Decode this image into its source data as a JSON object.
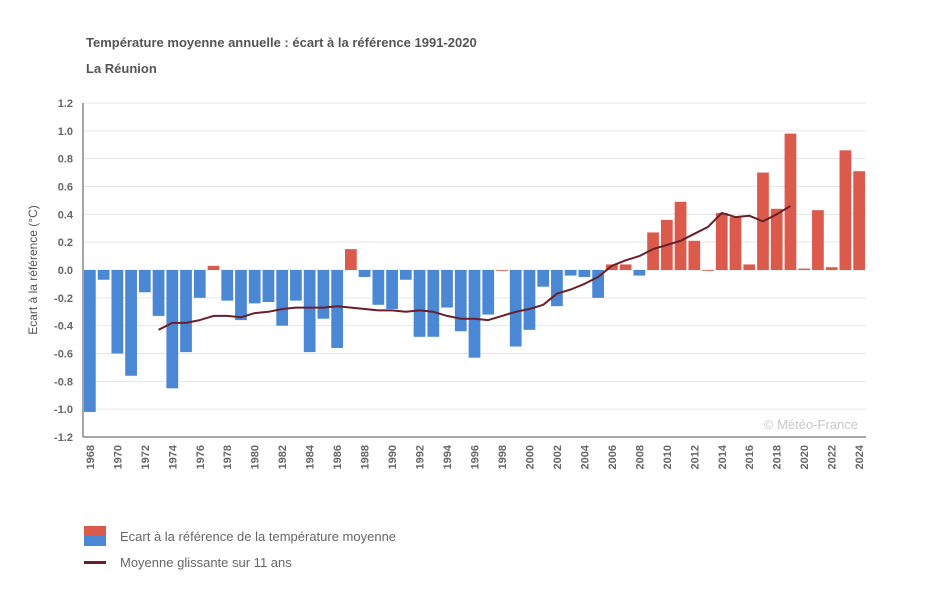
{
  "header": {
    "title": "Température moyenne annuelle : écart à la référence 1991-2020",
    "subtitle": "La Réunion"
  },
  "watermark": "© Météo-France",
  "legend": {
    "bars_label": "Ecart à la référence de la température moyenne",
    "line_label": "Moyenne glissante sur 11 ans"
  },
  "colors": {
    "positive": "#dc5a4c",
    "negative": "#4a88d6",
    "line": "#6b1f2a",
    "grid": "#e6e6e6",
    "axis": "#888888"
  },
  "chart_data": {
    "type": "bar",
    "title": "Température moyenne annuelle : écart à la référence 1991-2020",
    "subtitle": "La Réunion",
    "xlabel": "",
    "ylabel": "Ecart à la référence (°C)",
    "ylim": [
      -1.2,
      1.2
    ],
    "yticks": [
      1.2,
      1.0,
      0.8,
      0.6,
      0.4,
      0.2,
      0.0,
      -0.2,
      -0.4,
      -0.6,
      -0.8,
      -1.0,
      -1.2
    ],
    "ytick_labels": [
      "1.2",
      "1.0",
      "0.8",
      "0.6",
      "0.4",
      "0.2",
      "0.0",
      "-0.2",
      "-0.4",
      "-0.6",
      "-0.8",
      "-1.0",
      "-1.2"
    ],
    "grid": true,
    "legend_position": "bottom-left",
    "x": [
      1968,
      1969,
      1970,
      1971,
      1972,
      1973,
      1974,
      1975,
      1976,
      1977,
      1978,
      1979,
      1980,
      1981,
      1982,
      1983,
      1984,
      1985,
      1986,
      1987,
      1988,
      1989,
      1990,
      1991,
      1992,
      1993,
      1994,
      1995,
      1996,
      1997,
      1998,
      1999,
      2000,
      2001,
      2002,
      2003,
      2004,
      2005,
      2006,
      2007,
      2008,
      2009,
      2010,
      2011,
      2012,
      2013,
      2014,
      2015,
      2016,
      2017,
      2018,
      2019,
      2020,
      2021,
      2022,
      2023,
      2024
    ],
    "xtick_labels": [
      "1968",
      "1970",
      "1972",
      "1974",
      "1976",
      "1978",
      "1980",
      "1982",
      "1984",
      "1986",
      "1988",
      "1990",
      "1992",
      "1994",
      "1996",
      "1998",
      "2000",
      "2002",
      "2004",
      "2006",
      "2008",
      "2010",
      "2012",
      "2014",
      "2016",
      "2018",
      "2020",
      "2022",
      "2024"
    ],
    "series": [
      {
        "name": "Ecart à la référence de la température moyenne",
        "type": "bar",
        "values": [
          -1.02,
          -0.07,
          -0.6,
          -0.76,
          -0.16,
          -0.33,
          -0.85,
          -0.59,
          -0.2,
          0.03,
          -0.22,
          -0.36,
          -0.24,
          -0.23,
          -0.4,
          -0.22,
          -0.59,
          -0.35,
          -0.56,
          0.15,
          -0.05,
          -0.25,
          -0.28,
          -0.07,
          -0.48,
          -0.48,
          -0.27,
          -0.44,
          -0.63,
          -0.32,
          0.0,
          -0.55,
          -0.43,
          -0.12,
          -0.26,
          -0.04,
          -0.05,
          -0.2,
          0.04,
          0.04,
          -0.04,
          0.27,
          0.36,
          0.49,
          0.21,
          0.0,
          0.41,
          0.38,
          0.04,
          0.7,
          0.44,
          0.98,
          0.01,
          0.43,
          0.02,
          0.86,
          0.71
        ]
      },
      {
        "name": "Moyenne glissante sur 11 ans",
        "type": "line",
        "x": [
          1973,
          1974,
          1975,
          1976,
          1977,
          1978,
          1979,
          1980,
          1981,
          1982,
          1983,
          1984,
          1985,
          1986,
          1987,
          1988,
          1989,
          1990,
          1991,
          1992,
          1993,
          1994,
          1995,
          1996,
          1997,
          1998,
          1999,
          2000,
          2001,
          2002,
          2003,
          2004,
          2005,
          2006,
          2007,
          2008,
          2009,
          2010,
          2011,
          2012,
          2013,
          2014,
          2015,
          2016,
          2017,
          2018,
          2019
        ],
        "values": [
          -0.43,
          -0.38,
          -0.38,
          -0.36,
          -0.33,
          -0.33,
          -0.34,
          -0.31,
          -0.3,
          -0.28,
          -0.27,
          -0.27,
          -0.27,
          -0.26,
          -0.27,
          -0.28,
          -0.29,
          -0.29,
          -0.3,
          -0.29,
          -0.3,
          -0.33,
          -0.35,
          -0.35,
          -0.36,
          -0.33,
          -0.3,
          -0.28,
          -0.25,
          -0.17,
          -0.14,
          -0.1,
          -0.05,
          0.03,
          0.07,
          0.1,
          0.15,
          0.18,
          0.21,
          0.26,
          0.31,
          0.41,
          0.38,
          0.39,
          0.35,
          0.4,
          0.46
        ]
      }
    ]
  }
}
